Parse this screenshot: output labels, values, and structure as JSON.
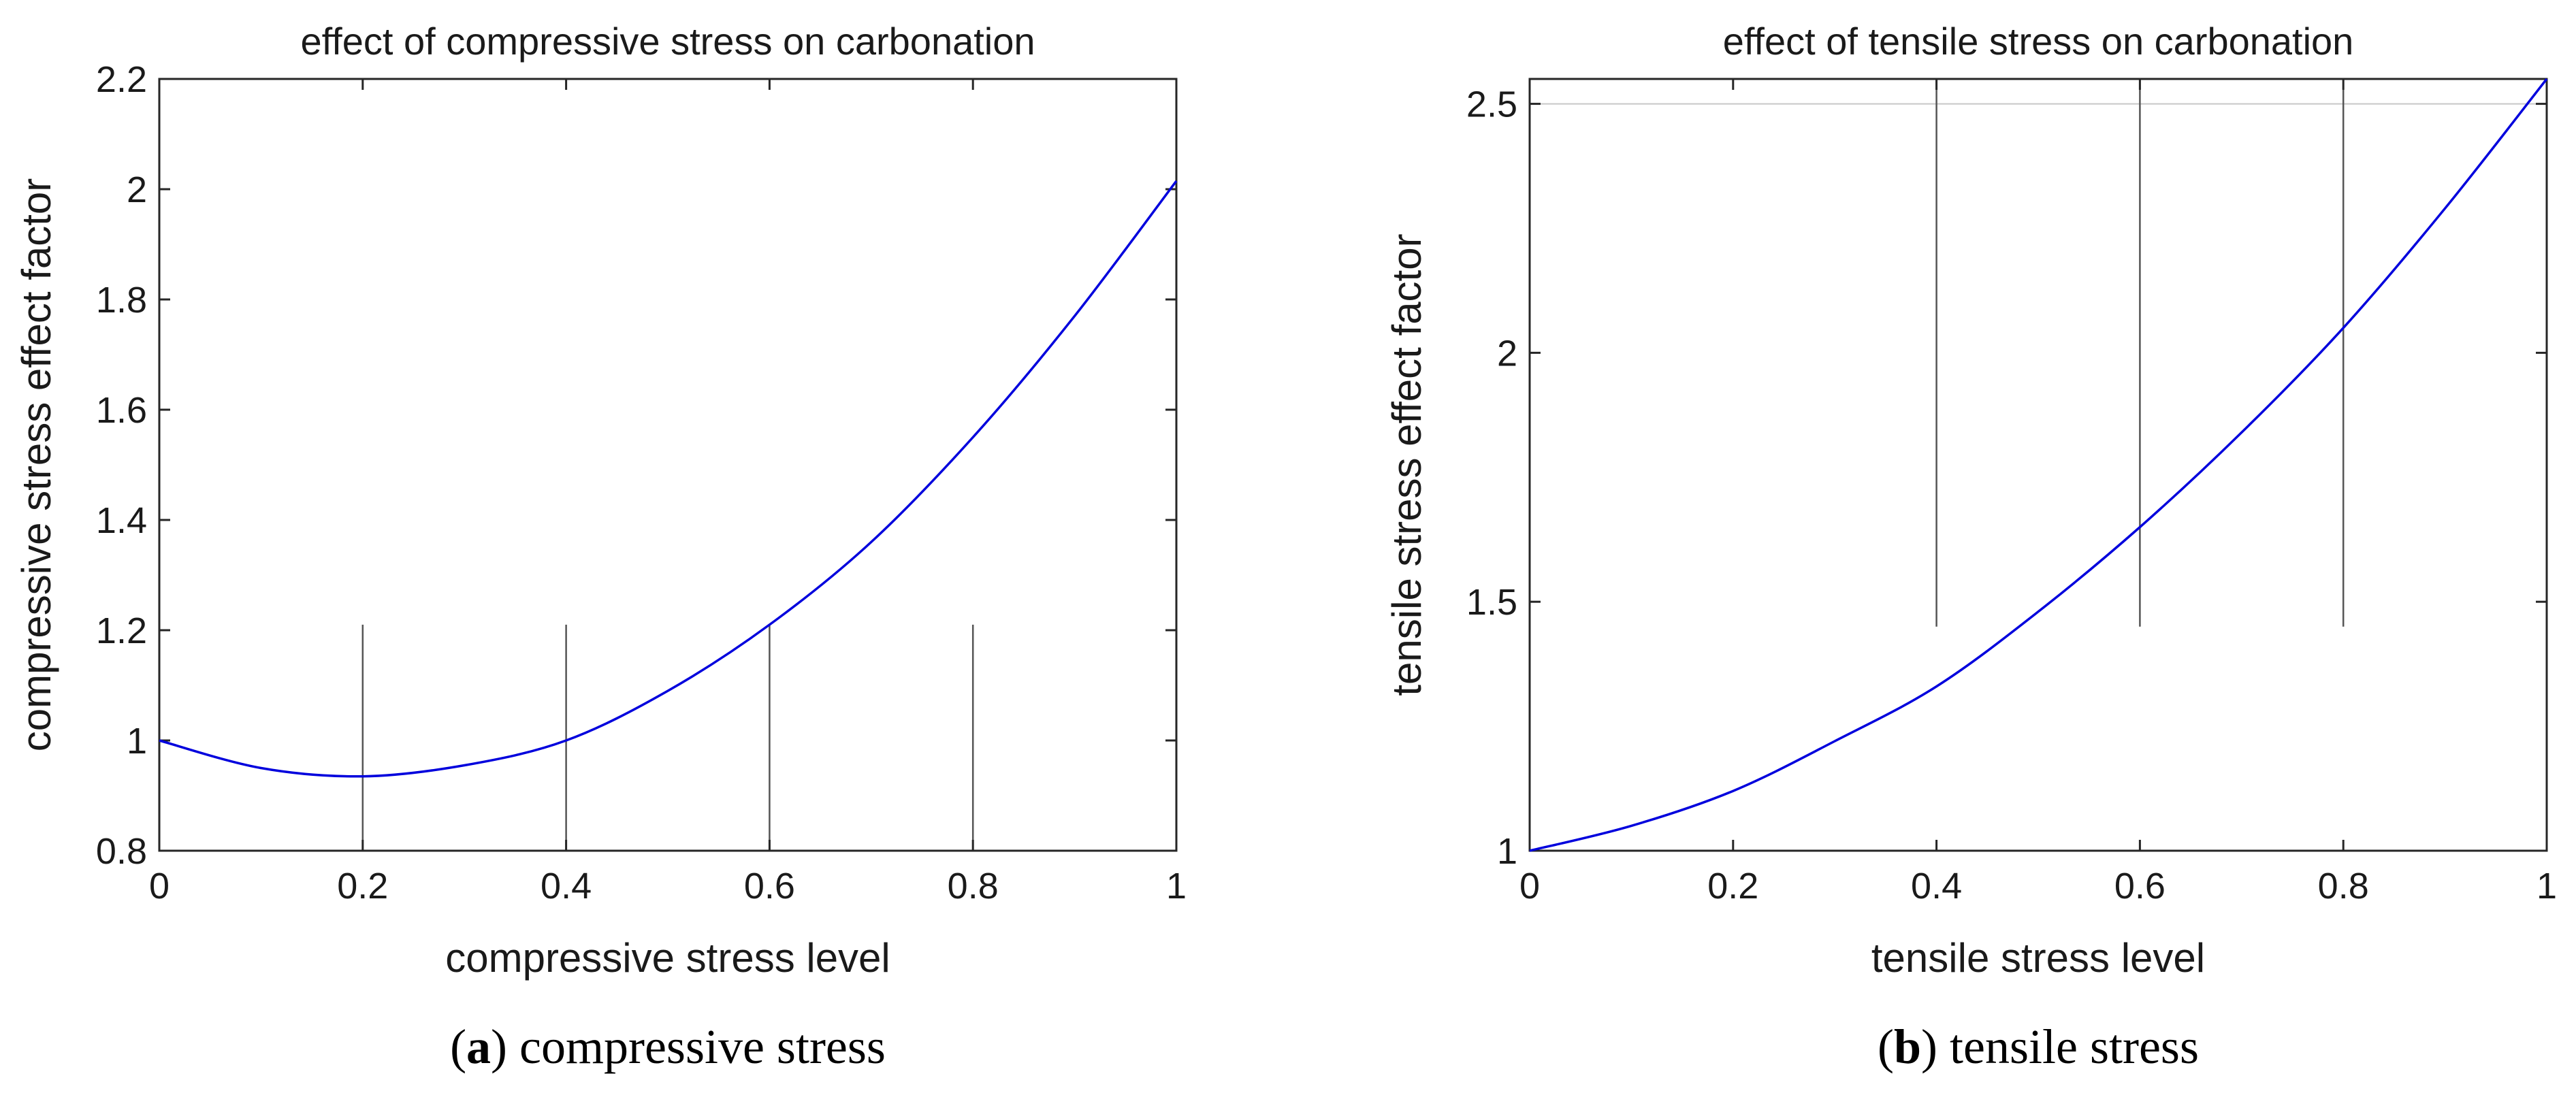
{
  "colors": {
    "curve": "#0000dd",
    "axis": "#262626",
    "grid": "#c8c8c8",
    "ref_line": "#555555",
    "background": "#ffffff"
  },
  "chart_data": [
    {
      "type": "line",
      "title": "effect of compressive stress on carbonation",
      "xlabel": "compressive stress level",
      "ylabel": "compressive stress effect factor",
      "xlim": [
        0,
        1
      ],
      "ylim": [
        0.8,
        2.2
      ],
      "xticks": [
        "0",
        "0.2",
        "0.4",
        "0.6",
        "0.8",
        "1"
      ],
      "yticks": [
        "0.8",
        "1",
        "1.2",
        "1.4",
        "1.6",
        "1.8",
        "2",
        "2.2"
      ],
      "grid": false,
      "vertical_lines": [
        {
          "x": 0.2,
          "y_from": 0.8,
          "y_to": 1.21
        },
        {
          "x": 0.4,
          "y_from": 0.8,
          "y_to": 1.21
        },
        {
          "x": 0.6,
          "y_from": 0.8,
          "y_to": 1.21
        },
        {
          "x": 0.8,
          "y_from": 0.8,
          "y_to": 1.21
        }
      ],
      "series": [
        {
          "name": "compressive stress effect factor",
          "x": [
            0,
            0.1,
            0.2,
            0.3,
            0.4,
            0.5,
            0.6,
            0.7,
            0.8,
            0.9,
            1.0
          ],
          "values": [
            1.0,
            0.95,
            0.935,
            0.955,
            1.0,
            1.09,
            1.21,
            1.36,
            1.55,
            1.77,
            2.015
          ]
        }
      ],
      "caption_letter": "a",
      "caption_text": "compressive stress"
    },
    {
      "type": "line",
      "title": "effect of tensile stress on carbonation",
      "xlabel": "tensile stress level",
      "ylabel": "tensile stress effect factor",
      "xlim": [
        0,
        1
      ],
      "ylim": [
        1,
        2.55
      ],
      "xticks": [
        "0",
        "0.2",
        "0.4",
        "0.6",
        "0.8",
        "1"
      ],
      "yticks": [
        "1",
        "1.5",
        "2",
        "2.5"
      ],
      "grid": false,
      "hline": 2.5,
      "vertical_lines": [
        {
          "x": 0.4,
          "y_from": 1.45,
          "y_to": 2.55
        },
        {
          "x": 0.6,
          "y_from": 1.45,
          "y_to": 2.55
        },
        {
          "x": 0.8,
          "y_from": 1.45,
          "y_to": 2.55
        }
      ],
      "series": [
        {
          "name": "tensile stress effect factor",
          "x": [
            0,
            0.1,
            0.2,
            0.3,
            0.4,
            0.5,
            0.6,
            0.7,
            0.8,
            0.9,
            1.0
          ],
          "values": [
            1.0,
            1.05,
            1.12,
            1.22,
            1.33,
            1.48,
            1.65,
            1.84,
            2.05,
            2.29,
            2.55
          ]
        }
      ],
      "caption_letter": "b",
      "caption_text": "tensile stress"
    }
  ]
}
